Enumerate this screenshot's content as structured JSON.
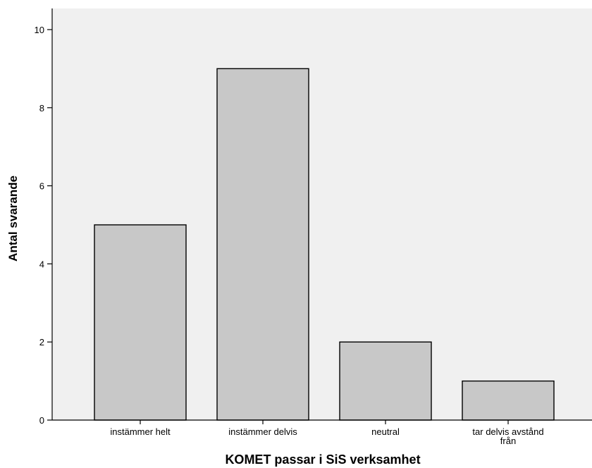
{
  "chart_data": {
    "type": "bar",
    "categories": [
      [
        "instämmer helt"
      ],
      [
        "instämmer delvis"
      ],
      [
        "neutral"
      ],
      [
        "tar delvis avstånd",
        "från"
      ]
    ],
    "values": [
      5,
      9,
      2,
      1
    ],
    "xlabel": "KOMET passar i SiS verksamhet",
    "ylabel": "Antal svarande",
    "ylim": [
      0,
      10
    ],
    "yticks": [
      0,
      2,
      4,
      6,
      8,
      10
    ],
    "grid": false,
    "legend": "none",
    "colors": {
      "plot_background": "#f0f0f0",
      "bar_fill": "#c8c8c8",
      "bar_stroke": "#000000",
      "axis": "#000000"
    }
  }
}
